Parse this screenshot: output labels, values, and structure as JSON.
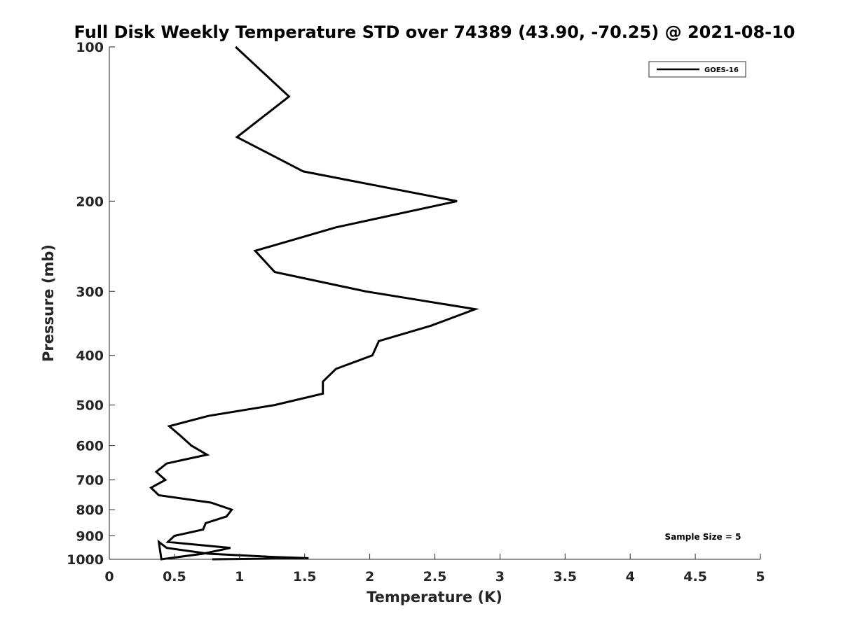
{
  "chart_data": {
    "type": "line",
    "title": "Full Disk Weekly Temperature STD over 74389 (43.90, -70.25) @ 2021-08-10",
    "xlabel": "Temperature (K)",
    "ylabel": "Pressure (mb)",
    "xlim": [
      0,
      5
    ],
    "ylim": [
      100,
      1000
    ],
    "y_scale": "log",
    "y_reversed": true,
    "x_ticks": [
      "0",
      "0.5",
      "1",
      "1.5",
      "2",
      "2.5",
      "3",
      "3.5",
      "4",
      "4.5",
      "5"
    ],
    "y_ticks": [
      "100",
      "200",
      "300",
      "400",
      "500",
      "600",
      "700",
      "800",
      "900",
      "1000"
    ],
    "grid": false,
    "legend_position": "top-right",
    "annotation": "Sample Size = 5",
    "series": [
      {
        "name": "GOES-16",
        "color": "#000000",
        "points": [
          [
            0.97,
            100
          ],
          [
            1.38,
            125
          ],
          [
            0.98,
            150
          ],
          [
            1.49,
            175
          ],
          [
            2.67,
            200
          ],
          [
            1.74,
            225
          ],
          [
            1.12,
            250
          ],
          [
            1.27,
            275
          ],
          [
            1.97,
            300
          ],
          [
            2.81,
            325
          ],
          [
            2.47,
            350
          ],
          [
            2.07,
            375
          ],
          [
            2.02,
            400
          ],
          [
            1.74,
            425
          ],
          [
            1.64,
            450
          ],
          [
            1.64,
            475
          ],
          [
            1.27,
            500
          ],
          [
            0.76,
            525
          ],
          [
            0.46,
            550
          ],
          [
            0.55,
            575
          ],
          [
            0.63,
            600
          ],
          [
            0.75,
            625
          ],
          [
            0.44,
            650
          ],
          [
            0.36,
            675
          ],
          [
            0.43,
            700
          ],
          [
            0.32,
            725
          ],
          [
            0.38,
            750
          ],
          [
            0.78,
            775
          ],
          [
            0.94,
            800
          ],
          [
            0.9,
            825
          ],
          [
            0.74,
            850
          ],
          [
            0.72,
            875
          ],
          [
            0.5,
            900
          ],
          [
            0.45,
            925
          ],
          [
            0.93,
            950
          ],
          [
            0.72,
            975
          ],
          [
            0.4,
            1000
          ],
          [
            0.38,
            925
          ],
          [
            0.44,
            950
          ],
          [
            0.76,
            975
          ],
          [
            1.11,
            985
          ],
          [
            1.27,
            990
          ],
          [
            1.53,
            995
          ],
          [
            0.79,
            1000
          ]
        ]
      }
    ]
  }
}
